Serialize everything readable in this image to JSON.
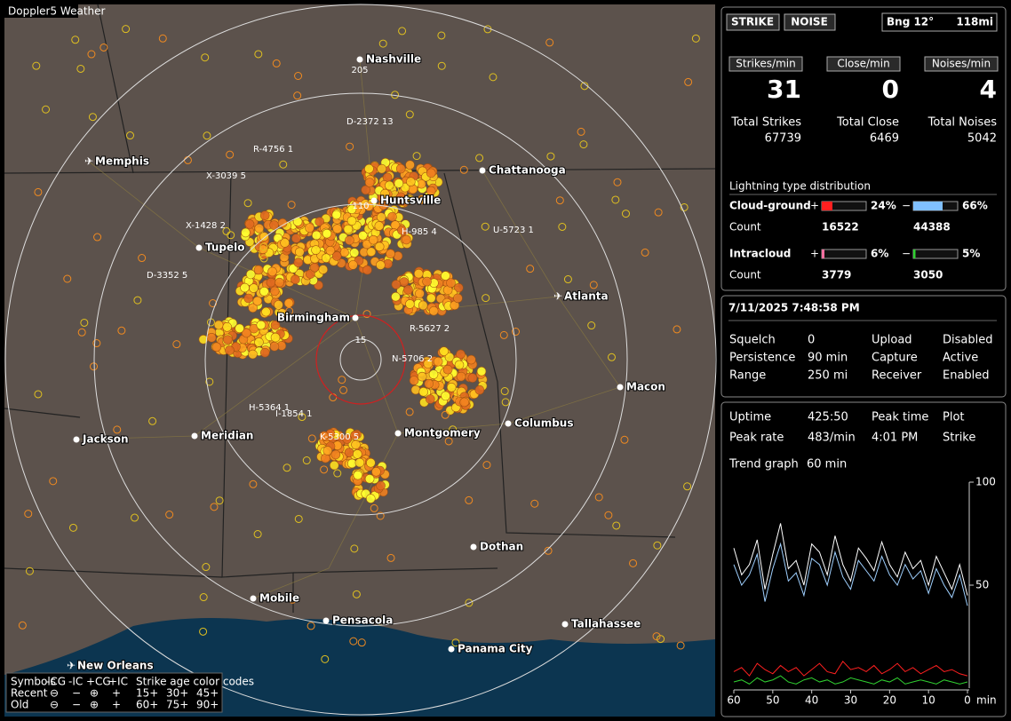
{
  "header": {
    "title": "Doppler5 Weather"
  },
  "map": {
    "cities": [
      "Nashville",
      "Memphis",
      "Chattanooga",
      "Huntsville",
      "Tupelo",
      "Birmingham",
      "Atlanta",
      "Macon",
      "Columbus",
      "Montgomery",
      "Meridian",
      "Jackson",
      "Dothan",
      "Mobile",
      "Pensacola",
      "Tallahassee",
      "Panama City",
      "New Orleans"
    ],
    "cells": [
      "R-4756 1",
      "D-2372 13",
      "X-3039 5",
      "X-1428 2",
      "D-3352 5",
      "H-985 4",
      "U-5723 1",
      "R-5627 2",
      "N-5706 2",
      "H-5364 1",
      "I-1854 1",
      "K-5300 5"
    ],
    "rings": [
      "205",
      "110",
      "15"
    ],
    "legend": {
      "symbols": "Symbols",
      "headers": [
        "-CG",
        "-IC",
        "+CG",
        "+IC"
      ],
      "age_title": "Strike age color codes",
      "rows": [
        "Recent",
        "Old"
      ],
      "recent_glyphs": [
        "⊖",
        "−",
        "⊕",
        "+"
      ],
      "old_glyphs": [
        "⊖",
        "−",
        "⊕",
        "+"
      ],
      "recent_ages": [
        "15+",
        "30+",
        "45+"
      ],
      "old_ages": [
        "60+",
        "75+",
        "90+"
      ]
    }
  },
  "status": {
    "strike": "STRIKE",
    "noise": "NOISE",
    "bearing": "Bng 12°",
    "distance": "118mi"
  },
  "rates": [
    {
      "label": "Strikes/min",
      "value": "31",
      "total_label": "Total Strikes",
      "total": "67739"
    },
    {
      "label": "Close/min",
      "value": "0",
      "total_label": "Total Close",
      "total": "6469"
    },
    {
      "label": "Noises/min",
      "value": "4",
      "total_label": "Total Noises",
      "total": "5042"
    }
  ],
  "distribution": {
    "title": "Lightning type distribution",
    "count_label": "Count",
    "rows": [
      {
        "name": "Cloud-ground",
        "plus": "+",
        "minus": "−",
        "pos": {
          "value": 24,
          "label": "24%"
        },
        "neg": {
          "value": 66,
          "label": "66%"
        },
        "pos_count": "16522",
        "neg_count": "44388"
      },
      {
        "name": "Intracloud",
        "plus": "+",
        "minus": "−",
        "pos": {
          "value": 6,
          "label": "6%"
        },
        "neg": {
          "value": 5,
          "label": "5%"
        },
        "pos_count": "3779",
        "neg_count": "3050"
      }
    ]
  },
  "settings": {
    "datetime": "7/11/2025 7:48:58 PM",
    "rows": [
      [
        "Squelch",
        "0",
        "Upload",
        "Disabled"
      ],
      [
        "Persistence",
        "90 min",
        "Capture",
        "Active"
      ],
      [
        "Range",
        "250 mi",
        "Receiver",
        "Enabled"
      ]
    ]
  },
  "stats": {
    "rows": [
      [
        "Uptime",
        "425:50",
        "Peak time",
        "Plot"
      ],
      [
        "Peak rate",
        "483/min",
        "4:01 PM",
        "Strike"
      ]
    ],
    "trend_label": "Trend graph",
    "trend_value": "60 min"
  },
  "chart_data": {
    "type": "line",
    "x_label": "min",
    "x": [
      60,
      58,
      56,
      54,
      52,
      50,
      48,
      46,
      44,
      42,
      40,
      38,
      36,
      34,
      32,
      30,
      28,
      26,
      24,
      22,
      20,
      18,
      16,
      14,
      12,
      10,
      8,
      6,
      4,
      2,
      0
    ],
    "xlim": [
      60,
      0
    ],
    "ylim": [
      0,
      100
    ],
    "xticks": [
      60,
      50,
      40,
      30,
      20,
      10,
      0
    ],
    "yticks": [
      100,
      50
    ],
    "series": [
      {
        "color": "#ffffff",
        "values": [
          68,
          55,
          60,
          72,
          48,
          65,
          80,
          58,
          62,
          50,
          70,
          66,
          55,
          74,
          60,
          52,
          68,
          63,
          57,
          71,
          60,
          54,
          66,
          58,
          62,
          50,
          64,
          56,
          48,
          60,
          45
        ]
      },
      {
        "color": "#9fd0ff",
        "values": [
          60,
          50,
          55,
          65,
          42,
          58,
          70,
          52,
          56,
          45,
          63,
          60,
          50,
          66,
          54,
          48,
          62,
          57,
          52,
          64,
          55,
          50,
          60,
          53,
          57,
          46,
          58,
          50,
          44,
          55,
          40
        ]
      },
      {
        "color": "#ff2020",
        "values": [
          8,
          10,
          6,
          12,
          9,
          7,
          11,
          8,
          10,
          6,
          9,
          12,
          8,
          7,
          13,
          9,
          10,
          8,
          11,
          7,
          9,
          12,
          8,
          10,
          7,
          9,
          11,
          8,
          9,
          7,
          6
        ]
      },
      {
        "color": "#30d030",
        "values": [
          3,
          4,
          2,
          5,
          3,
          4,
          6,
          3,
          2,
          4,
          5,
          3,
          4,
          2,
          3,
          5,
          4,
          3,
          2,
          4,
          3,
          5,
          2,
          3,
          4,
          3,
          2,
          4,
          3,
          2,
          3
        ]
      }
    ]
  }
}
